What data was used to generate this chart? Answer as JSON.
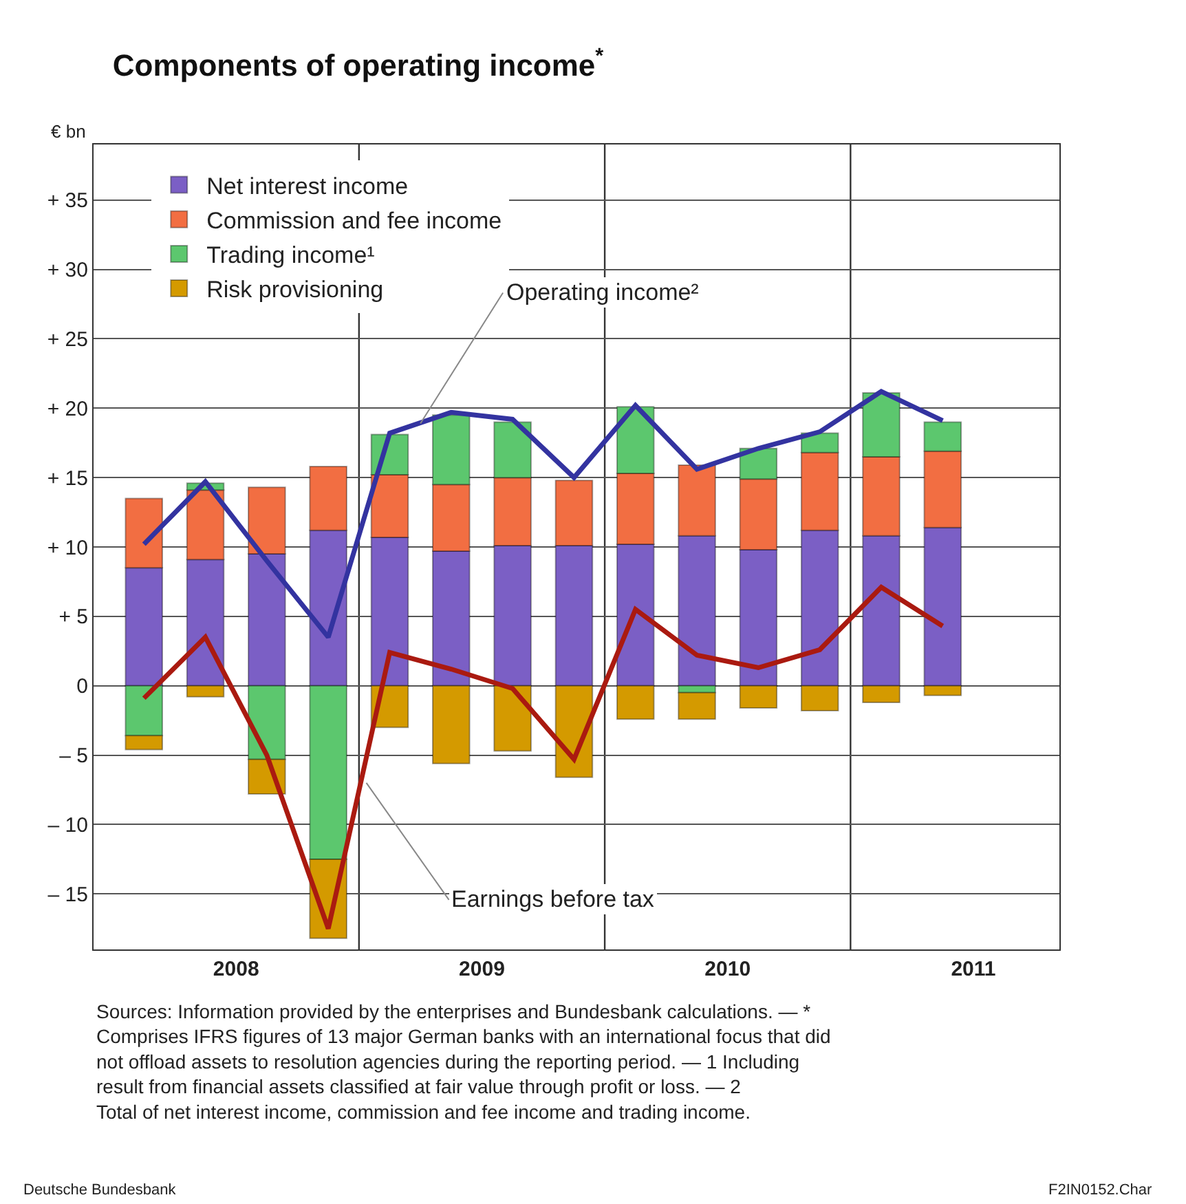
{
  "chart_data": {
    "type": "bar",
    "stacked": true,
    "title": "Components of operating income$^{*}$",
    "ylabel": "€ bn",
    "x": [
      2008.125,
      2008.375,
      2008.625,
      2008.875,
      2009.125,
      2009.375,
      2009.625,
      2009.875,
      2010.125,
      2010.375,
      2010.625,
      2010.875,
      2011.125,
      2011.375
    ],
    "series": [
      {
        "name": "Net interest income",
        "color": "#7b5fc5",
        "values": [
          8.5,
          9.1,
          9.5,
          11.2,
          10.7,
          9.7,
          10.1,
          10.1,
          10.2,
          10.8,
          9.8,
          11.2,
          10.8,
          11.4
        ]
      },
      {
        "name": "Commission and fee income",
        "color": "#f26e42",
        "values": [
          5.0,
          5.0,
          4.8,
          4.6,
          4.5,
          4.8,
          4.9,
          4.7,
          5.1,
          5.1,
          5.1,
          5.6,
          5.7,
          5.5
        ]
      },
      {
        "name": "Trading income¹",
        "color": "#5cc76e",
        "values": [
          -3.6,
          0.5,
          -5.3,
          -12.5,
          2.9,
          5.0,
          4.0,
          null,
          4.8,
          -0.5,
          2.2,
          1.4,
          4.6,
          2.1
        ]
      },
      {
        "name": "Risk provisioning",
        "color": "#d49a00",
        "values": [
          -1.0,
          -0.8,
          -2.5,
          -5.7,
          -3.0,
          -5.6,
          -4.7,
          -6.6,
          -2.4,
          -1.9,
          -1.6,
          -1.8,
          -1.2,
          -0.7
        ]
      },
      {
        "type": "line",
        "color": "#3333a0",
        "values": [
          10.2,
          14.7,
          9.0,
          3.5,
          18.2,
          19.7,
          19.2,
          15.0,
          20.2,
          15.6,
          17.1,
          18.3,
          21.2,
          19.1
        ]
      },
      {
        "type": "line",
        "color": "#aa1a10",
        "values": [
          -0.9,
          3.5,
          -5.0,
          -17.5,
          2.4,
          1.2,
          -0.2,
          -5.3,
          5.5,
          2.2,
          1.3,
          2.6,
          7.1,
          4.3
        ]
      }
    ],
    "xlim": [
      2007.92,
      2011.85
    ],
    "xticks": [
      {
        "value": 2008.5,
        "label": "2008"
      },
      {
        "value": 2009,
        "label": null
      },
      {
        "value": 2009.5,
        "label": "2009"
      },
      {
        "value": 2010,
        "label": null
      },
      {
        "value": 2010.5,
        "label": "2010"
      },
      {
        "value": 2011,
        "label": null
      },
      {
        "value": 2011.5,
        "label": "2011"
      }
    ],
    "ylim": [
      -19,
      39
    ],
    "yticks": [
      {
        "value": -15,
        "label": "– 15"
      },
      {
        "value": -10,
        "label": "– 10"
      },
      {
        "value": -5,
        "label": "– 5"
      },
      0,
      {
        "value": 5,
        "label": "+ 5"
      },
      {
        "value": 10,
        "label": "+ 10"
      },
      {
        "value": 15,
        "label": "+ 15"
      },
      {
        "value": 20,
        "label": "+ 20"
      },
      {
        "value": 25,
        "label": "+ 25"
      },
      {
        "value": 30,
        "label": "+ 30"
      },
      {
        "value": 35,
        "label": "+ 35"
      }
    ],
    "grid": true,
    "legend": "top left",
    "marker": "none",
    "line_style": "solid",
    "annotations": [
      {
        "text": "Operating income²",
        "x": 2009.25,
        "y": 18.9
      },
      {
        "text": "Earnings before tax",
        "x": 2009.03,
        "y": -7.0
      },
      "Sources: Information provided by the enterprises and Bundesbank calculations. — * Comprises IFRS figures of 13 major German banks with an international focus that did not offload assets to resolution agencies during the reporting period. — 1 Including result from financial assets classified at fair value through profit or loss. — 2 Total of net interest income, commission and fee income and trading income.",
      "Deutsche Bundesbank",
      "F2IN0152.Char"
    ]
  }
}
